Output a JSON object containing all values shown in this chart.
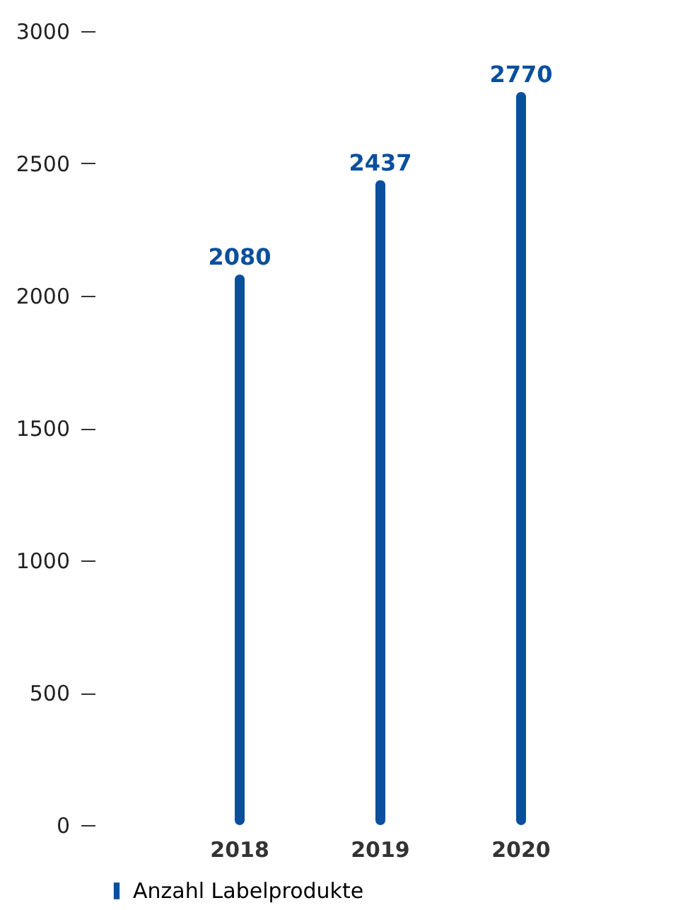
{
  "chart_data": {
    "type": "bar",
    "categories": [
      "2018",
      "2019",
      "2020"
    ],
    "series": [
      {
        "name": "Anzahl Labelprodukte",
        "color": "#0a4f9e",
        "values": [
          2080,
          2437,
          2770
        ]
      }
    ],
    "ylim": [
      0,
      3000
    ],
    "yticks": [
      0,
      500,
      1000,
      1500,
      2000,
      2500,
      3000
    ],
    "data_labels": true,
    "grid": false,
    "legend": "bottom"
  }
}
